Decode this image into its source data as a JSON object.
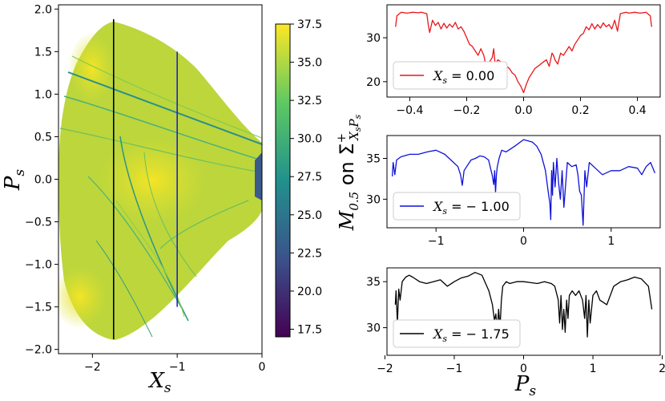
{
  "chart_data": [
    {
      "type": "heatmap",
      "xlabel": "X_s",
      "ylabel": "P_s",
      "xlim": [
        -2.4,
        0
      ],
      "ylim": [
        -2.05,
        2.05
      ],
      "xticks": [
        {
          "v": -2,
          "t": "−2"
        },
        {
          "v": -1,
          "t": "−1"
        },
        {
          "v": 0,
          "t": "0"
        }
      ],
      "yticks": [
        {
          "v": 2.0,
          "t": "2.0"
        },
        {
          "v": 1.5,
          "t": "1.5"
        },
        {
          "v": 1.0,
          "t": "1.0"
        },
        {
          "v": 0.5,
          "t": "0.5"
        },
        {
          "v": 0.0,
          "t": "0.0"
        },
        {
          "v": -0.5,
          "t": "−0.5"
        },
        {
          "v": -1.0,
          "t": "−1.0"
        },
        {
          "v": -1.5,
          "t": "−1.5"
        },
        {
          "v": -2.0,
          "t": "−2.0"
        }
      ],
      "colorbar": {
        "range": [
          17.0,
          37.5
        ],
        "ticks": [
          "37.5",
          "35.0",
          "32.5",
          "30.0",
          "27.5",
          "25.0",
          "22.5",
          "20.0",
          "17.5"
        ],
        "tick_values": [
          37.5,
          35.0,
          32.5,
          30.0,
          27.5,
          25.0,
          22.5,
          20.0,
          17.5
        ],
        "colors": [
          "#440154",
          "#3b528b",
          "#21918c",
          "#5ec962",
          "#fde725"
        ],
        "label": "M_{0.5} on Σ⁺_{X_s P_s}"
      },
      "cut_lines": [
        {
          "x": -1.75,
          "p_range": [
            -1.88,
            1.88
          ],
          "color": "#000000"
        },
        {
          "x": -1.0,
          "p_range": [
            -1.5,
            1.5
          ],
          "color": "#2222cc"
        }
      ]
    },
    {
      "type": "line",
      "xlim": [
        -0.48,
        0.48
      ],
      "ylim": [
        16.5,
        37.5
      ],
      "xticks": [
        {
          "v": -0.4,
          "t": "−0.4"
        },
        {
          "v": -0.2,
          "t": "−0.2"
        },
        {
          "v": 0.0,
          "t": "0.0"
        },
        {
          "v": 0.2,
          "t": "0.2"
        },
        {
          "v": 0.4,
          "t": "0.4"
        }
      ],
      "yticks": [
        {
          "v": 30,
          "t": "30"
        },
        {
          "v": 20,
          "t": "20"
        }
      ],
      "series": [
        {
          "name": "X_s = 0.00",
          "color": "#e8161b",
          "x": [
            -0.45,
            -0.445,
            -0.43,
            -0.41,
            -0.39,
            -0.37,
            -0.36,
            -0.34,
            -0.335,
            -0.33,
            -0.32,
            -0.31,
            -0.3,
            -0.29,
            -0.28,
            -0.27,
            -0.26,
            -0.25,
            -0.24,
            -0.23,
            -0.22,
            -0.21,
            -0.2,
            -0.19,
            -0.18,
            -0.17,
            -0.16,
            -0.15,
            -0.14,
            -0.13,
            -0.12,
            -0.11,
            -0.105,
            -0.1,
            -0.09,
            -0.08,
            -0.07,
            -0.06,
            -0.05,
            -0.04,
            -0.03,
            -0.02,
            -0.01,
            0.0,
            0.01,
            0.02,
            0.03,
            0.04,
            0.05,
            0.06,
            0.07,
            0.08,
            0.09,
            0.1,
            0.105,
            0.11,
            0.12,
            0.13,
            0.14,
            0.15,
            0.16,
            0.17,
            0.18,
            0.19,
            0.2,
            0.21,
            0.22,
            0.23,
            0.24,
            0.25,
            0.26,
            0.27,
            0.28,
            0.29,
            0.3,
            0.31,
            0.32,
            0.33,
            0.335,
            0.34,
            0.36,
            0.37,
            0.39,
            0.41,
            0.43,
            0.445,
            0.45
          ],
          "y": [
            32.5,
            35.0,
            35.8,
            35.6,
            35.8,
            35.7,
            35.8,
            35.5,
            33.0,
            31.2,
            34.0,
            32.8,
            33.5,
            32.0,
            33.3,
            32.2,
            33.1,
            32.4,
            33.5,
            32.0,
            32.5,
            31.5,
            30.0,
            28.5,
            28.0,
            27.0,
            26.0,
            27.5,
            26.0,
            23.0,
            24.5,
            25.5,
            27.5,
            24.0,
            25.0,
            24.5,
            24.0,
            23.5,
            23.0,
            22.0,
            21.5,
            20.0,
            19.0,
            17.5,
            19.5,
            21.0,
            22.0,
            23.0,
            23.5,
            24.0,
            24.5,
            25.0,
            23.5,
            26.5,
            26.0,
            25.0,
            24.0,
            26.5,
            26.0,
            27.0,
            28.0,
            27.0,
            28.5,
            29.5,
            30.5,
            31.0,
            32.5,
            31.8,
            33.2,
            32.0,
            33.0,
            32.2,
            33.4,
            32.5,
            33.0,
            32.0,
            34.0,
            31.5,
            33.5,
            35.5,
            35.8,
            35.6,
            35.8,
            35.6,
            35.8,
            35.0,
            32.5
          ]
        }
      ]
    },
    {
      "type": "line",
      "xlim": [
        -1.56,
        1.56
      ],
      "ylim": [
        26.5,
        37.8
      ],
      "xticks": [
        {
          "v": -1,
          "t": "−1"
        },
        {
          "v": 0,
          "t": "0"
        },
        {
          "v": 1,
          "t": "1"
        }
      ],
      "yticks": [
        {
          "v": 35,
          "t": "35"
        },
        {
          "v": 30,
          "t": "30"
        }
      ],
      "series": [
        {
          "name": "X_s = −1.00",
          "color": "#0f12d9",
          "x": [
            -1.5,
            -1.49,
            -1.47,
            -1.45,
            -1.4,
            -1.3,
            -1.2,
            -1.1,
            -1.0,
            -0.9,
            -0.85,
            -0.8,
            -0.75,
            -0.72,
            -0.7,
            -0.68,
            -0.65,
            -0.6,
            -0.55,
            -0.5,
            -0.45,
            -0.4,
            -0.36,
            -0.34,
            -0.33,
            -0.32,
            -0.31,
            -0.3,
            -0.28,
            -0.25,
            -0.2,
            -0.1,
            0.0,
            0.1,
            0.15,
            0.2,
            0.25,
            0.28,
            0.3,
            0.31,
            0.32,
            0.33,
            0.34,
            0.36,
            0.38,
            0.4,
            0.42,
            0.44,
            0.46,
            0.5,
            0.55,
            0.6,
            0.62,
            0.64,
            0.66,
            0.68,
            0.7,
            0.72,
            0.75,
            0.8,
            0.9,
            1.0,
            1.1,
            1.2,
            1.3,
            1.35,
            1.4,
            1.45,
            1.5
          ],
          "y": [
            32.8,
            34.5,
            33.0,
            34.8,
            35.2,
            35.5,
            35.5,
            35.8,
            36.0,
            35.5,
            35.0,
            34.5,
            34.0,
            33.0,
            31.7,
            33.5,
            34.0,
            34.8,
            35.0,
            35.3,
            35.2,
            34.8,
            33.0,
            31.8,
            33.5,
            30.8,
            33.0,
            34.0,
            35.0,
            36.0,
            35.8,
            36.5,
            37.3,
            37.0,
            36.5,
            35.5,
            33.5,
            31.0,
            29.5,
            27.5,
            33.5,
            30.5,
            34.5,
            31.5,
            35.0,
            32.0,
            30.0,
            33.5,
            29.0,
            34.5,
            34.0,
            34.2,
            33.0,
            31.0,
            30.5,
            26.8,
            33.5,
            31.5,
            34.5,
            34.0,
            33.0,
            33.5,
            33.5,
            34.0,
            33.8,
            33.0,
            34.0,
            34.5,
            33.2
          ]
        }
      ]
    },
    {
      "type": "line",
      "xlim": [
        -1.97,
        1.97
      ],
      "ylim": [
        27.0,
        36.5
      ],
      "xticks": [
        {
          "v": -2,
          "t": "−2"
        },
        {
          "v": -1,
          "t": "−1"
        },
        {
          "v": 0,
          "t": "0"
        },
        {
          "v": 1,
          "t": "1"
        },
        {
          "v": 2,
          "t": "2"
        }
      ],
      "yticks": [
        {
          "v": 35,
          "t": "35"
        },
        {
          "v": 30,
          "t": "30"
        }
      ],
      "series": [
        {
          "name": "X_s = −1.75",
          "color": "#000000",
          "x": [
            -1.85,
            -1.84,
            -1.82,
            -1.8,
            -1.78,
            -1.75,
            -1.72,
            -1.7,
            -1.65,
            -1.6,
            -1.5,
            -1.4,
            -1.3,
            -1.2,
            -1.1,
            -1.0,
            -0.9,
            -0.8,
            -0.7,
            -0.6,
            -0.5,
            -0.45,
            -0.42,
            -0.4,
            -0.38,
            -0.36,
            -0.34,
            -0.32,
            -0.3,
            -0.25,
            -0.2,
            -0.1,
            0.0,
            0.1,
            0.2,
            0.3,
            0.4,
            0.45,
            0.5,
            0.52,
            0.54,
            0.56,
            0.58,
            0.6,
            0.62,
            0.64,
            0.66,
            0.7,
            0.75,
            0.8,
            0.85,
            0.88,
            0.9,
            0.92,
            0.94,
            0.96,
            1.0,
            1.05,
            1.1,
            1.2,
            1.3,
            1.4,
            1.5,
            1.6,
            1.7,
            1.8,
            1.85
          ],
          "y": [
            32.5,
            34.0,
            30.5,
            34.2,
            33.0,
            35.0,
            35.3,
            35.5,
            35.7,
            35.5,
            35.0,
            34.8,
            35.0,
            35.2,
            34.5,
            35.0,
            35.4,
            35.6,
            36.0,
            35.7,
            34.0,
            32.5,
            30.8,
            31.5,
            29.5,
            32.0,
            30.0,
            33.0,
            34.5,
            35.0,
            34.8,
            35.0,
            35.0,
            34.9,
            34.8,
            35.0,
            34.8,
            34.5,
            33.0,
            30.5,
            33.5,
            29.8,
            32.0,
            29.5,
            33.0,
            31.0,
            33.5,
            34.0,
            33.5,
            34.0,
            33.0,
            31.0,
            33.5,
            29.0,
            33.0,
            30.5,
            33.5,
            34.0,
            33.0,
            32.5,
            34.5,
            35.0,
            35.2,
            35.5,
            35.3,
            34.5,
            32.0
          ]
        }
      ]
    }
  ],
  "shared_labels": {
    "right_xlabel": "P_s",
    "right_ylabel": "M_{0.5} on Σ⁺_{X_s P_s}"
  }
}
